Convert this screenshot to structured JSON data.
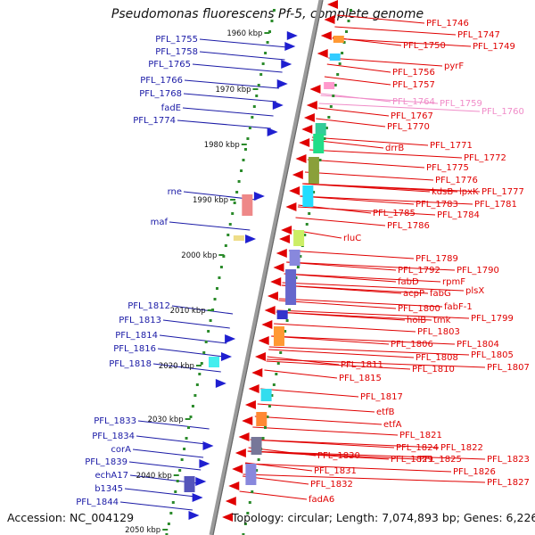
{
  "title": "Pseudomonas fluorescens Pf-5, complete genome",
  "footer": {
    "accession": "Accession: NC_004129",
    "topology": "Topology: circular; Length: 7,074,893 bp; Genes: 6,226"
  },
  "colors": {
    "left_label": "#1a1aa6",
    "right_label": "#e00000",
    "faded_label": "#f08cc8",
    "backbone": "#9a9a9a",
    "tick": "#2a8a2a"
  },
  "kbp_marks": [
    "1960 kbp",
    "1970 kbp",
    "1980 kbp",
    "1990 kbp",
    "2000 kbp",
    "2010 kbp",
    "2020 kbp",
    "2030 kbp",
    "2040 kbp",
    "2050 kbp"
  ],
  "left_labels": [
    "PFL_1755",
    "PFL_1758",
    "PFL_1765",
    "PFL_1766",
    "PFL_1768",
    "fadE",
    "PFL_1774",
    "rne",
    "maf",
    "PFL_1812",
    "PFL_1813",
    "PFL_1814",
    "PFL_1816",
    "PFL_1818",
    "PFL_1833",
    "PFL_1834",
    "corA",
    "PFL_1839",
    "echA17",
    "b1345",
    "PFL_1844"
  ],
  "right_labels": [
    "PFL_1746",
    "PFL_1747",
    "PFL_1750",
    "PFL_1749",
    "pyrF",
    "PFL_1756",
    "PFL_1757",
    "PFL_1764",
    "PFL_1759",
    "PFL_1760",
    "PFL_1767",
    "PFL_1770",
    "drrB",
    "PFL_1771",
    "PFL_1772",
    "PFL_1775",
    "PFL_1776",
    "kdsB",
    "lpxK",
    "PFL_1777",
    "PFL_1783",
    "PFL_1781",
    "PFL_1785",
    "PFL_1784",
    "PFL_1786",
    "rluC",
    "PFL_1789",
    "PFL_1792",
    "PFL_1790",
    "rpmF",
    "fabD",
    "plsX",
    "acpP",
    "fabG",
    "fabF-1",
    "PFL_1800",
    "PFL_1799",
    "holB",
    "tmk",
    "PFL_1803",
    "PFL_1806",
    "PFL_1804",
    "PFL_1808",
    "PFL_1805",
    "PFL_1811",
    "PFL_1810",
    "PFL_1807",
    "PFL_1815",
    "PFL_1817",
    "etfB",
    "etfA",
    "PFL_1821",
    "PFL_1824",
    "PFL_1822",
    "PFL_1825",
    "PFL_1823",
    "PFL_1830",
    "PFL_1829",
    "PFL_1826",
    "PFL_1831",
    "PFL_1827",
    "PFL_1832",
    "fadA6"
  ]
}
